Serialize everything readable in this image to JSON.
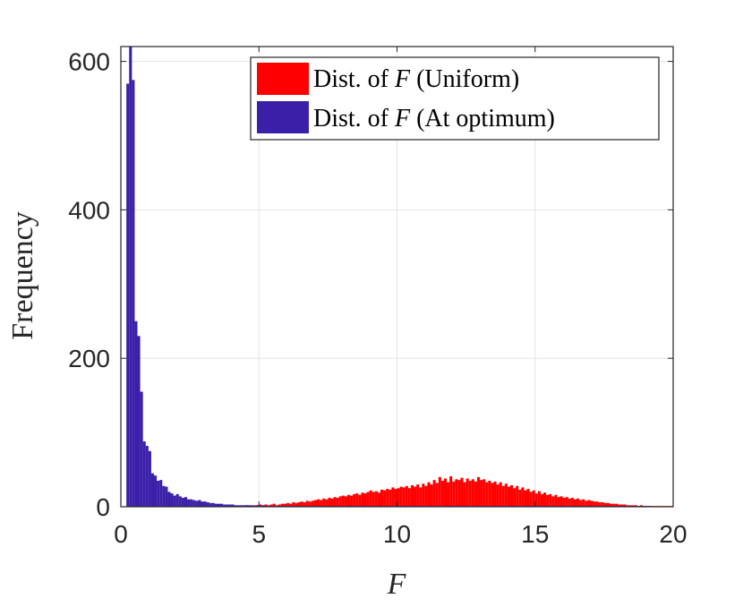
{
  "chart_data": {
    "type": "bar",
    "title": "",
    "xlabel": "F",
    "ylabel": "Frequency",
    "xlim": [
      0,
      20
    ],
    "ylim": [
      0,
      620
    ],
    "xticks": [
      0,
      5,
      10,
      15,
      20
    ],
    "yticks": [
      0,
      200,
      400,
      600
    ],
    "xtick_labels": [
      "0",
      "5",
      "10",
      "15",
      "20"
    ],
    "ytick_labels": [
      "0",
      "200",
      "400",
      "600"
    ],
    "grid": true,
    "legend_position": "top-right",
    "bin_width": 0.1,
    "series": [
      {
        "name": "Dist. of F (Uniform)",
        "legend_prefix": "Dist. of",
        "legend_var": "F",
        "legend_suffix": "(Uniform)",
        "color": "#ff0000",
        "bins_start": 4.0,
        "values": [
          1,
          1,
          1,
          1,
          1,
          2,
          1,
          1,
          2,
          2,
          3,
          2,
          3,
          2,
          3,
          4,
          2,
          3,
          4,
          4,
          5,
          4,
          6,
          5,
          6,
          7,
          6,
          8,
          7,
          8,
          9,
          10,
          9,
          11,
          10,
          12,
          11,
          13,
          12,
          14,
          15,
          14,
          16,
          15,
          17,
          18,
          16,
          19,
          18,
          20,
          22,
          20,
          21,
          19,
          23,
          22,
          24,
          23,
          26,
          24,
          25,
          27,
          26,
          28,
          25,
          29,
          27,
          30,
          26,
          31,
          28,
          33,
          30,
          36,
          32,
          40,
          35,
          38,
          33,
          41,
          34,
          37,
          36,
          39,
          33,
          38,
          35,
          37,
          34,
          40,
          36,
          37,
          33,
          35,
          32,
          34,
          30,
          33,
          28,
          31,
          27,
          29,
          25,
          28,
          23,
          26,
          22,
          24,
          20,
          22,
          18,
          21,
          17,
          19,
          16,
          17,
          14,
          16,
          13,
          14,
          12,
          13,
          11,
          12,
          10,
          11,
          9,
          10,
          8,
          9,
          8,
          7,
          7,
          6,
          6,
          5,
          5,
          4,
          4,
          4,
          3,
          3,
          3,
          2,
          2,
          2,
          2,
          1,
          2,
          1,
          1,
          1,
          1,
          1,
          1,
          1,
          1,
          1,
          1,
          1
        ]
      },
      {
        "name": "Dist. of F (At optimum)",
        "legend_prefix": "Dist. of",
        "legend_var": "F",
        "legend_suffix": "(At optimum)",
        "color": "#3a1fa8",
        "bins_start": 0.2,
        "values": [
          570,
          620,
          575,
          250,
          230,
          155,
          88,
          82,
          75,
          45,
          42,
          35,
          36,
          28,
          27,
          20,
          18,
          15,
          17,
          14,
          12,
          13,
          10,
          10,
          9,
          8,
          9,
          7,
          7,
          6,
          5,
          5,
          4,
          4,
          4,
          3,
          3,
          3,
          3,
          2,
          2,
          2,
          2,
          2,
          2,
          2,
          1,
          2,
          1,
          2,
          1,
          1,
          1,
          1,
          1,
          1,
          1,
          1,
          1,
          1,
          1,
          1,
          1,
          1,
          1,
          1,
          1,
          1,
          1,
          1,
          1,
          1,
          1,
          1,
          1,
          1,
          1,
          1,
          1,
          1,
          1,
          1,
          1,
          1,
          1,
          1,
          1,
          1,
          1,
          1,
          1,
          1,
          1,
          1,
          1,
          1,
          1,
          1,
          1,
          1,
          1,
          1,
          1,
          1,
          1,
          1,
          1,
          1,
          1,
          1,
          1,
          1,
          1,
          1,
          1,
          1,
          1,
          1,
          1,
          1,
          1,
          1,
          1,
          1,
          1,
          1,
          1,
          1,
          1,
          1,
          1,
          1,
          1,
          1,
          1,
          1,
          1,
          1,
          1,
          1,
          1,
          1,
          1,
          1,
          1,
          1,
          1,
          1,
          1,
          1,
          1,
          1,
          1,
          1,
          1,
          1,
          1,
          1,
          1,
          1,
          1,
          1,
          1,
          1,
          1,
          1,
          1,
          1,
          1,
          1,
          1,
          1,
          1,
          1,
          1,
          1,
          1,
          1,
          1,
          1,
          1,
          1,
          1,
          1,
          1,
          1,
          1,
          1,
          1,
          1
        ]
      }
    ]
  }
}
